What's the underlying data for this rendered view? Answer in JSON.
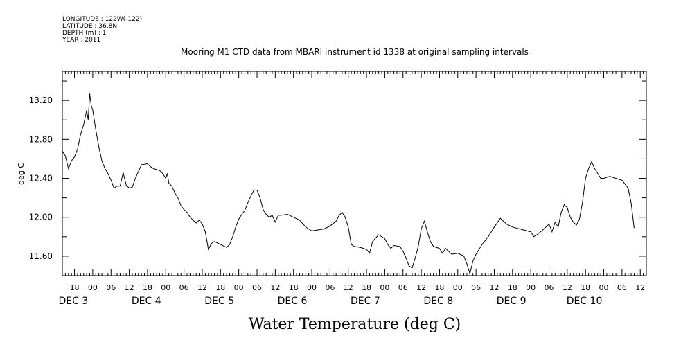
{
  "header": {
    "meta_lines": [
      "LONGITUDE : 122W(-122)",
      "LATITUDE : 36.8N",
      "DEPTH (m) : 1",
      "YEAR : 2011"
    ]
  },
  "chart_data": {
    "type": "line",
    "title": "Mooring M1 CTD data from MBARI instrument id 1338 at original sampling intervals",
    "xlabel": "Water Temperature (deg C)",
    "ylabel": "deg C",
    "ylim": [
      11.4,
      13.5
    ],
    "y_ticks": [
      "11.60",
      "12.00",
      "12.40",
      "12.80",
      "13.20"
    ],
    "x_start": "2011-12-02 14:00",
    "x_end": "2011-12-10 14:00",
    "hour_tick_labels": [
      "18",
      "00",
      "06",
      "12",
      "18",
      "00",
      "06",
      "12",
      "18",
      "00",
      "06",
      "12",
      "18",
      "00",
      "06",
      "12",
      "18",
      "00",
      "06",
      "12",
      "18",
      "00",
      "06",
      "12",
      "18",
      "00",
      "06",
      "12",
      "18",
      "00",
      "06",
      "12"
    ],
    "day_labels": [
      "DEC 3",
      "DEC 4",
      "DEC 5",
      "DEC 6",
      "DEC 7",
      "DEC 8",
      "DEC 9",
      "DEC 10"
    ],
    "series": [
      {
        "color": "#000000",
        "points": [
          [
            "2011-12-02 14:00",
            12.68
          ],
          [
            "2011-12-02 15:00",
            12.63
          ],
          [
            "2011-12-02 16:00",
            12.5
          ],
          [
            "2011-12-02 17:00",
            12.58
          ],
          [
            "2011-12-02 18:00",
            12.62
          ],
          [
            "2011-12-02 19:00",
            12.7
          ],
          [
            "2011-12-02 20:00",
            12.85
          ],
          [
            "2011-12-02 21:00",
            12.95
          ],
          [
            "2011-12-02 22:00",
            13.1
          ],
          [
            "2011-12-02 22:30",
            13.0
          ],
          [
            "2011-12-02 23:00",
            13.27
          ],
          [
            "2011-12-02 23:30",
            13.15
          ],
          [
            "2011-12-03 00:00",
            13.1
          ],
          [
            "2011-12-03 01:00",
            12.9
          ],
          [
            "2011-12-03 02:00",
            12.72
          ],
          [
            "2011-12-03 03:00",
            12.58
          ],
          [
            "2011-12-03 04:00",
            12.5
          ],
          [
            "2011-12-03 05:00",
            12.45
          ],
          [
            "2011-12-03 06:00",
            12.38
          ],
          [
            "2011-12-03 07:00",
            12.3
          ],
          [
            "2011-12-03 08:00",
            12.32
          ],
          [
            "2011-12-03 09:00",
            12.32
          ],
          [
            "2011-12-03 10:00",
            12.46
          ],
          [
            "2011-12-03 11:00",
            12.33
          ],
          [
            "2011-12-03 12:00",
            12.3
          ],
          [
            "2011-12-03 13:00",
            12.31
          ],
          [
            "2011-12-03 14:00",
            12.4
          ],
          [
            "2011-12-03 15:00",
            12.47
          ],
          [
            "2011-12-03 16:00",
            12.54
          ],
          [
            "2011-12-03 18:00",
            12.55
          ],
          [
            "2011-12-03 19:00",
            12.52
          ],
          [
            "2011-12-03 20:00",
            12.5
          ],
          [
            "2011-12-03 22:00",
            12.48
          ],
          [
            "2011-12-03 23:00",
            12.45
          ],
          [
            "2011-12-04 00:00",
            12.4
          ],
          [
            "2011-12-04 00:30",
            12.45
          ],
          [
            "2011-12-04 01:00",
            12.35
          ],
          [
            "2011-12-04 02:00",
            12.32
          ],
          [
            "2011-12-04 03:00",
            12.25
          ],
          [
            "2011-12-04 04:00",
            12.2
          ],
          [
            "2011-12-04 05:00",
            12.12
          ],
          [
            "2011-12-04 06:00",
            12.08
          ],
          [
            "2011-12-04 07:00",
            12.05
          ],
          [
            "2011-12-04 08:00",
            12.0
          ],
          [
            "2011-12-04 09:00",
            11.97
          ],
          [
            "2011-12-04 10:00",
            11.94
          ],
          [
            "2011-12-04 11:00",
            11.97
          ],
          [
            "2011-12-04 12:00",
            11.93
          ],
          [
            "2011-12-04 13:00",
            11.85
          ],
          [
            "2011-12-04 14:00",
            11.67
          ],
          [
            "2011-12-04 15:00",
            11.73
          ],
          [
            "2011-12-04 16:00",
            11.75
          ],
          [
            "2011-12-04 18:00",
            11.72
          ],
          [
            "2011-12-04 20:00",
            11.69
          ],
          [
            "2011-12-04 21:00",
            11.72
          ],
          [
            "2011-12-04 22:00",
            11.8
          ],
          [
            "2011-12-04 23:00",
            11.9
          ],
          [
            "2011-12-05 00:00",
            11.98
          ],
          [
            "2011-12-05 01:00",
            12.03
          ],
          [
            "2011-12-05 02:00",
            12.07
          ],
          [
            "2011-12-05 03:00",
            12.15
          ],
          [
            "2011-12-05 04:00",
            12.22
          ],
          [
            "2011-12-05 05:00",
            12.28
          ],
          [
            "2011-12-05 06:00",
            12.28
          ],
          [
            "2011-12-05 07:00",
            12.2
          ],
          [
            "2011-12-05 08:00",
            12.08
          ],
          [
            "2011-12-05 09:00",
            12.03
          ],
          [
            "2011-12-05 10:00",
            12.0
          ],
          [
            "2011-12-05 11:00",
            12.02
          ],
          [
            "2011-12-05 12:00",
            11.95
          ],
          [
            "2011-12-05 13:00",
            12.02
          ],
          [
            "2011-12-05 14:00",
            12.02
          ],
          [
            "2011-12-05 16:00",
            12.03
          ],
          [
            "2011-12-05 18:00",
            12.0
          ],
          [
            "2011-12-05 20:00",
            11.97
          ],
          [
            "2011-12-05 22:00",
            11.9
          ],
          [
            "2011-12-06 00:00",
            11.86
          ],
          [
            "2011-12-06 04:00",
            11.88
          ],
          [
            "2011-12-06 06:00",
            11.91
          ],
          [
            "2011-12-06 08:00",
            11.96
          ],
          [
            "2011-12-06 09:00",
            12.02
          ],
          [
            "2011-12-06 10:00",
            12.05
          ],
          [
            "2011-12-06 11:00",
            12.0
          ],
          [
            "2011-12-06 12:00",
            11.9
          ],
          [
            "2011-12-06 13:00",
            11.72
          ],
          [
            "2011-12-06 14:00",
            11.7
          ],
          [
            "2011-12-06 16:00",
            11.69
          ],
          [
            "2011-12-06 18:00",
            11.67
          ],
          [
            "2011-12-06 19:00",
            11.63
          ],
          [
            "2011-12-06 20:00",
            11.75
          ],
          [
            "2011-12-06 22:00",
            11.82
          ],
          [
            "2011-12-07 00:00",
            11.78
          ],
          [
            "2011-12-07 01:00",
            11.72
          ],
          [
            "2011-12-07 02:00",
            11.68
          ],
          [
            "2011-12-07 03:00",
            11.71
          ],
          [
            "2011-12-07 05:00",
            11.7
          ],
          [
            "2011-12-07 06:00",
            11.65
          ],
          [
            "2011-12-07 07:00",
            11.58
          ],
          [
            "2011-12-07 08:00",
            11.5
          ],
          [
            "2011-12-07 09:00",
            11.48
          ],
          [
            "2011-12-07 10:00",
            11.58
          ],
          [
            "2011-12-07 11:00",
            11.7
          ],
          [
            "2011-12-07 12:00",
            11.88
          ],
          [
            "2011-12-07 13:00",
            11.96
          ],
          [
            "2011-12-07 14:00",
            11.85
          ],
          [
            "2011-12-07 15:00",
            11.75
          ],
          [
            "2011-12-07 16:00",
            11.7
          ],
          [
            "2011-12-07 18:00",
            11.68
          ],
          [
            "2011-12-07 19:00",
            11.63
          ],
          [
            "2011-12-07 20:00",
            11.68
          ],
          [
            "2011-12-07 22:00",
            11.62
          ],
          [
            "2011-12-08 00:00",
            11.63
          ],
          [
            "2011-12-08 02:00",
            11.6
          ],
          [
            "2011-12-08 03:00",
            11.52
          ],
          [
            "2011-12-08 04:00",
            11.42
          ],
          [
            "2011-12-08 05:00",
            11.55
          ],
          [
            "2011-12-08 06:00",
            11.62
          ],
          [
            "2011-12-08 08:00",
            11.72
          ],
          [
            "2011-12-08 10:00",
            11.8
          ],
          [
            "2011-12-08 12:00",
            11.9
          ],
          [
            "2011-12-08 14:00",
            11.99
          ],
          [
            "2011-12-08 16:00",
            11.93
          ],
          [
            "2011-12-08 18:00",
            11.9
          ],
          [
            "2011-12-09 00:00",
            11.85
          ],
          [
            "2011-12-09 01:00",
            11.8
          ],
          [
            "2011-12-09 02:00",
            11.82
          ],
          [
            "2011-12-09 04:00",
            11.87
          ],
          [
            "2011-12-09 06:00",
            11.93
          ],
          [
            "2011-12-09 07:00",
            11.85
          ],
          [
            "2011-12-09 08:00",
            11.95
          ],
          [
            "2011-12-09 09:00",
            11.9
          ],
          [
            "2011-12-09 10:00",
            12.05
          ],
          [
            "2011-12-09 11:00",
            12.13
          ],
          [
            "2011-12-09 12:00",
            12.1
          ],
          [
            "2011-12-09 13:00",
            12.0
          ],
          [
            "2011-12-09 14:00",
            11.95
          ],
          [
            "2011-12-09 15:00",
            11.92
          ],
          [
            "2011-12-09 16:00",
            11.98
          ],
          [
            "2011-12-09 17:00",
            12.15
          ],
          [
            "2011-12-09 18:00",
            12.4
          ],
          [
            "2011-12-09 19:00",
            12.5
          ],
          [
            "2011-12-09 20:00",
            12.57
          ],
          [
            "2011-12-09 21:00",
            12.5
          ],
          [
            "2011-12-09 22:00",
            12.45
          ],
          [
            "2011-12-09 23:00",
            12.4
          ],
          [
            "2011-12-10 00:00",
            12.4
          ],
          [
            "2011-12-10 02:00",
            12.42
          ],
          [
            "2011-12-10 04:00",
            12.4
          ],
          [
            "2011-12-10 06:00",
            12.38
          ],
          [
            "2011-12-10 08:00",
            12.3
          ],
          [
            "2011-12-10 09:00",
            12.15
          ],
          [
            "2011-12-10 10:00",
            11.89
          ]
        ]
      }
    ]
  }
}
